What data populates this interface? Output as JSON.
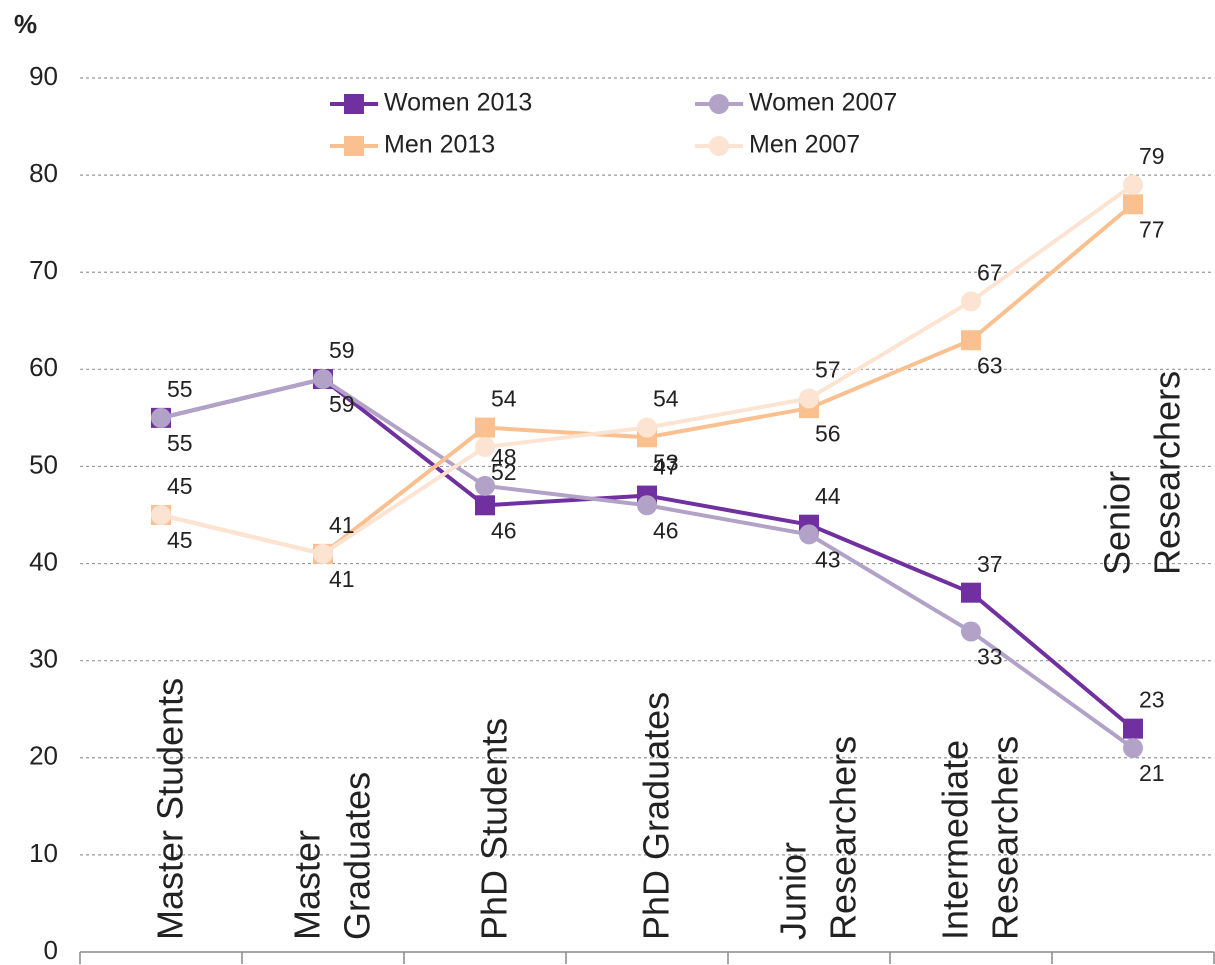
{
  "chart_data": {
    "type": "line",
    "ylabel": "%",
    "categories": [
      [
        "Master Students"
      ],
      [
        "Master",
        "Graduates"
      ],
      [
        "PhD Students"
      ],
      [
        "PhD Graduates"
      ],
      [
        "Junior",
        "Researchers"
      ],
      [
        "Intermediate",
        "Researchers"
      ],
      [
        "Senior",
        "Researchers"
      ]
    ],
    "series": [
      {
        "name": "Women 2013",
        "color": "#7030a0",
        "marker": "square",
        "values": [
          55,
          59,
          46,
          47,
          44,
          37,
          23
        ]
      },
      {
        "name": "Women 2007",
        "color": "#b3a2c7",
        "marker": "circle",
        "values": [
          55,
          59,
          48,
          46,
          43,
          33,
          21
        ]
      },
      {
        "name": "Men 2013",
        "color": "#fac090",
        "marker": "square",
        "values": [
          45,
          41,
          54,
          53,
          56,
          63,
          77
        ]
      },
      {
        "name": "Men 2007",
        "color": "#fde3d1",
        "marker": "circle",
        "values": [
          45,
          41,
          52,
          54,
          57,
          67,
          79
        ]
      }
    ],
    "ylim": [
      0,
      90
    ],
    "yticks": [
      0,
      10,
      20,
      30,
      40,
      50,
      60,
      70,
      80,
      90
    ],
    "grid": true
  }
}
